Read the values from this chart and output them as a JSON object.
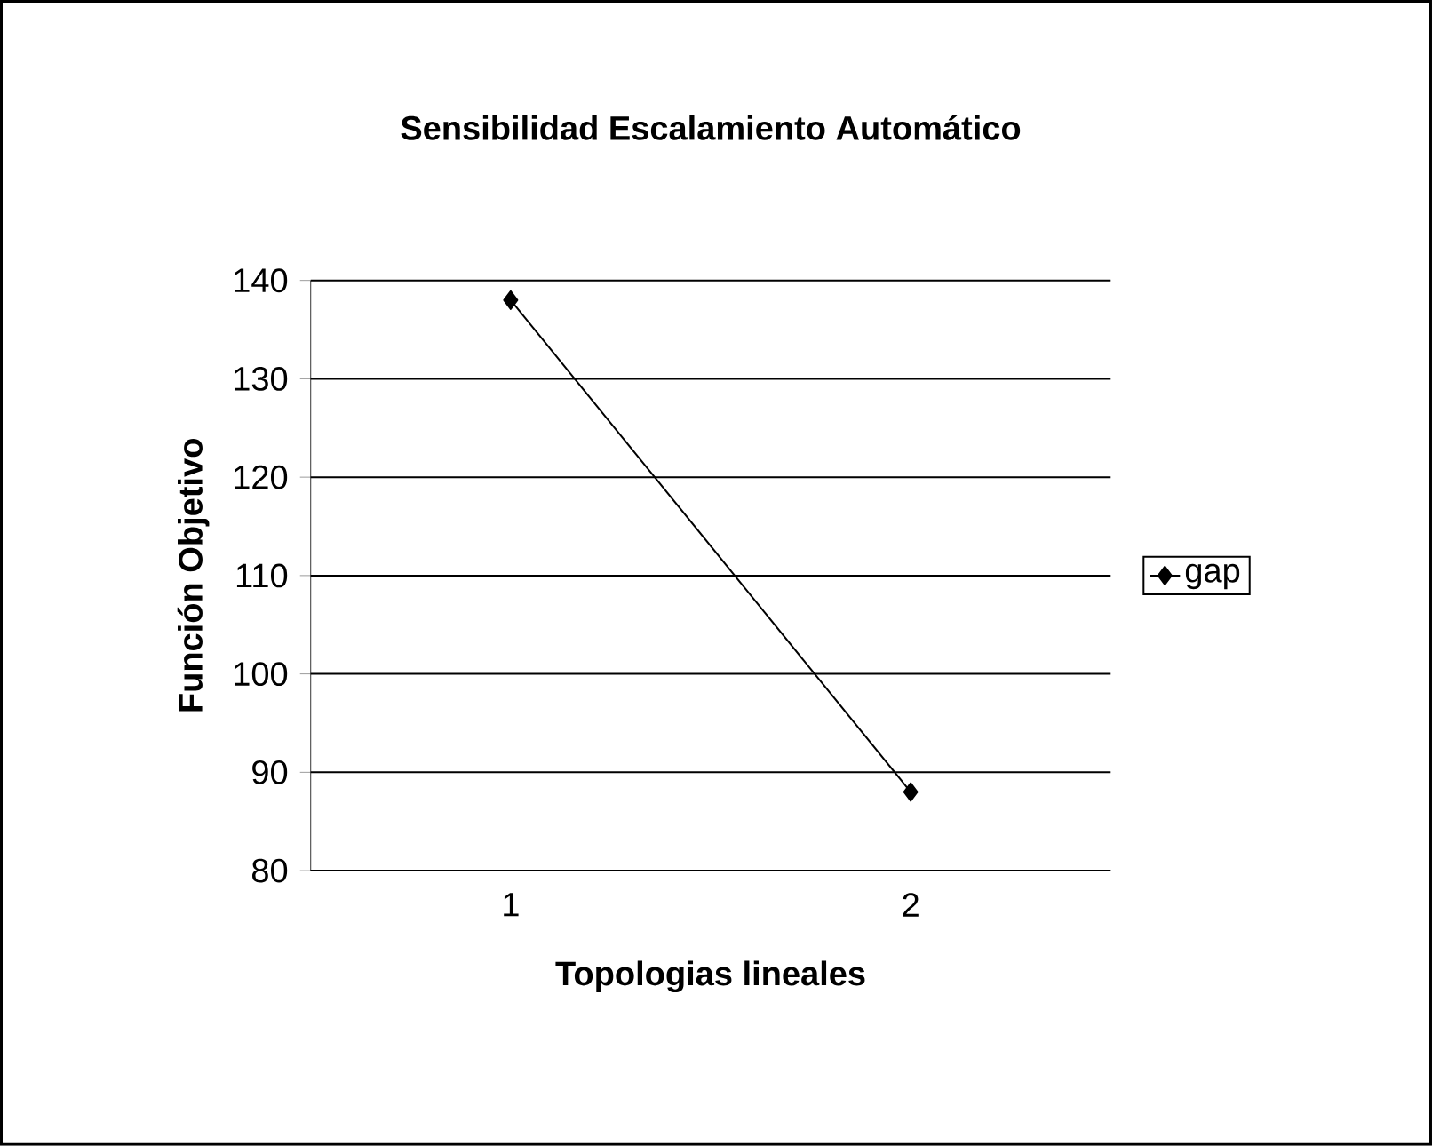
{
  "chart_data": {
    "type": "line",
    "title": "Sensibilidad Escalamiento Automático",
    "xlabel": "Topologias lineales",
    "ylabel": "Función Objetivo",
    "categories": [
      "1",
      "2"
    ],
    "series": [
      {
        "name": "gap",
        "color": "#000000",
        "values": [
          138,
          88
        ]
      }
    ],
    "ylim": [
      80,
      140
    ],
    "yticks": [
      80,
      90,
      100,
      110,
      120,
      130,
      140
    ],
    "grid": "y",
    "legend": "right",
    "marker": "diamond",
    "line_style": "solid"
  }
}
